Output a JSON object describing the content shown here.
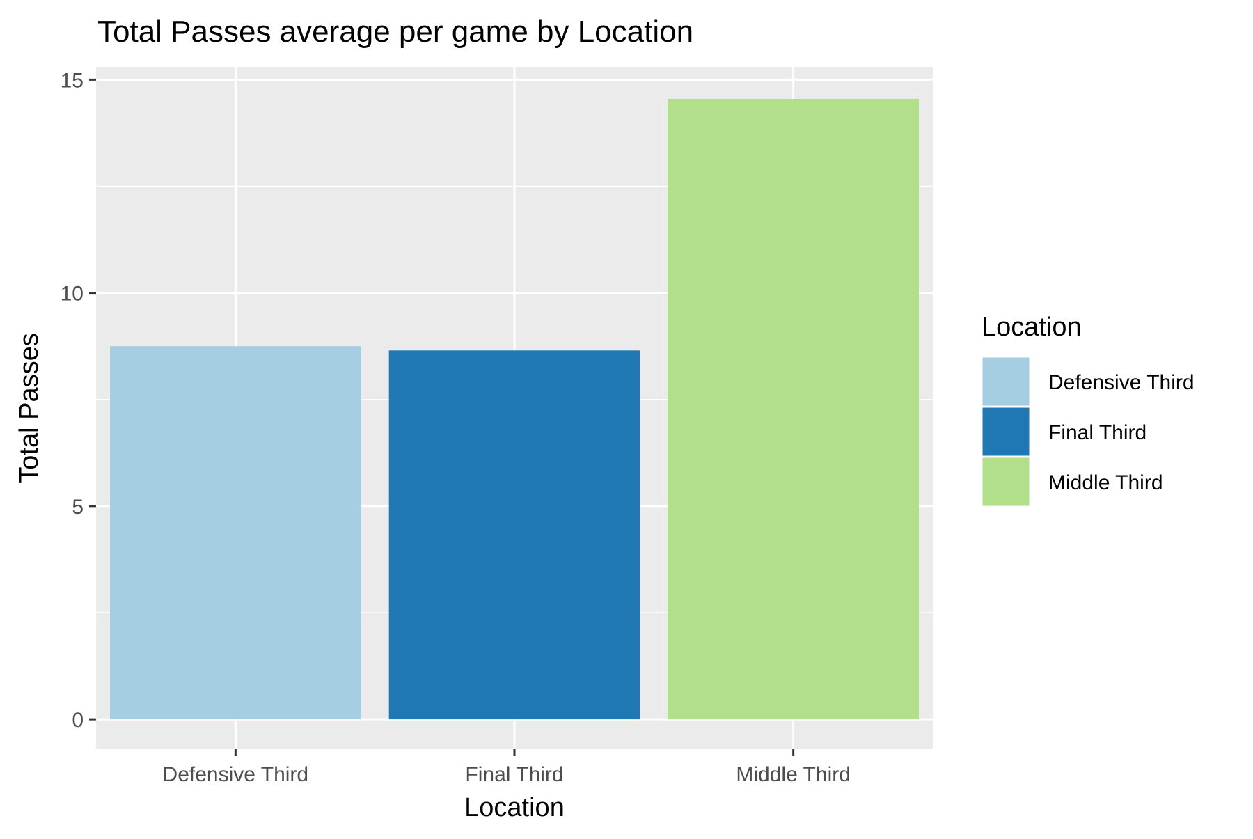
{
  "chart_data": {
    "type": "bar",
    "title": "Total Passes average per game by Location",
    "xlabel": "Location",
    "ylabel": "Total Passes",
    "categories": [
      "Defensive Third",
      "Final Third",
      "Middle Third"
    ],
    "values": [
      8.75,
      8.65,
      14.55
    ],
    "colors": [
      "#a6cee3",
      "#1f78b4",
      "#b2df8a"
    ],
    "yticks": [
      0,
      5,
      10,
      15
    ],
    "ylim": [
      -0.7,
      15.3
    ],
    "grid": true,
    "panel_background": "#ebebeb",
    "legend": {
      "title": "Location",
      "position": "right",
      "entries": [
        "Defensive Third",
        "Final Third",
        "Middle Third"
      ]
    }
  }
}
